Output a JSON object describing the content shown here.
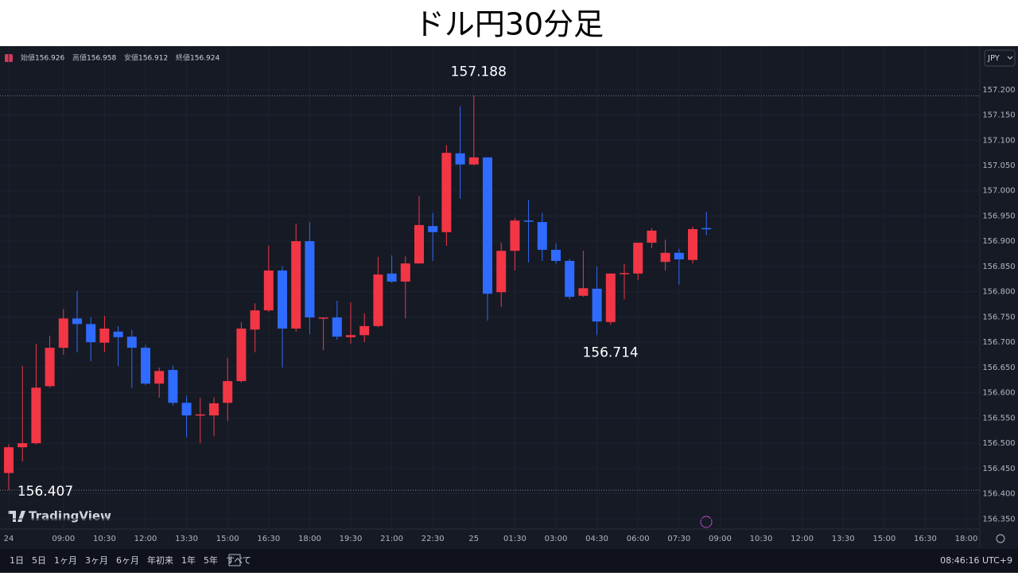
{
  "chart_data": {
    "type": "candlestick",
    "title": "ドル円30分足",
    "ohlc_labels": [
      "始値",
      "高値",
      "安値",
      "終値"
    ],
    "currency": "JPY",
    "brand": "TradingView",
    "ranges": [
      "1日",
      "5日",
      "1ヶ月",
      "3ヶ月",
      "6ヶ月",
      "年初来",
      "1年",
      "5年",
      "すべて"
    ],
    "clock": "08:46:16 UTC+9",
    "up_color": "#f23645",
    "down_color": "#2f6bff",
    "grid": true,
    "categories": [
      "24",
      null,
      null,
      null,
      "09:00",
      null,
      null,
      "10:30",
      null,
      null,
      "12:00",
      null,
      null,
      "13:30",
      null,
      null,
      "15:00",
      null,
      null,
      "16:30",
      null,
      null,
      "18:00",
      null,
      null,
      "19:30",
      null,
      null,
      "21:00",
      null,
      null,
      "22:30",
      null,
      null,
      "25",
      null,
      null,
      "01:30",
      null,
      null,
      "03:00",
      null,
      null,
      "04:30",
      null,
      null,
      "06:00",
      null,
      null,
      "07:30",
      null,
      null,
      "09:00",
      null,
      null,
      "10:30",
      null,
      null,
      "12:00",
      null,
      null,
      "13:30",
      null,
      null,
      "15:00",
      null,
      null,
      "16:30",
      null,
      null,
      "18:00"
    ],
    "open": [
      156.441,
      156.492,
      156.5,
      156.613,
      156.689,
      156.747,
      156.736,
      156.699,
      156.721,
      156.711,
      156.689,
      156.618,
      156.645,
      156.58,
      156.555,
      156.555,
      156.58,
      156.623,
      156.725,
      156.763,
      156.842,
      156.727,
      156.9,
      156.749,
      156.749,
      156.71,
      156.714,
      156.732,
      156.836,
      156.82,
      156.856,
      156.93,
      156.918,
      157.074,
      157.052,
      157.066,
      156.799,
      156.881,
      156.941,
      156.938,
      156.883,
      156.861,
      156.792,
      156.806,
      156.74,
      156.837,
      156.836,
      156.897,
      156.859,
      156.877,
      156.863,
      156.926,
      null,
      null,
      null,
      null,
      null,
      null,
      null,
      null,
      null,
      null,
      null,
      null,
      null,
      null,
      null,
      null,
      null,
      null,
      null
    ],
    "high": [
      156.498,
      156.653,
      156.697,
      156.713,
      156.766,
      156.801,
      156.75,
      156.752,
      156.732,
      156.724,
      156.695,
      156.65,
      156.654,
      156.594,
      156.59,
      156.591,
      156.669,
      156.74,
      156.777,
      156.891,
      156.85,
      156.935,
      156.938,
      156.749,
      156.782,
      156.779,
      156.757,
      156.869,
      156.872,
      156.87,
      156.989,
      156.956,
      157.09,
      157.167,
      157.188,
      157.066,
      156.897,
      156.946,
      156.982,
      156.956,
      156.896,
      156.865,
      156.881,
      156.85,
      156.836,
      156.855,
      156.897,
      156.926,
      156.903,
      156.885,
      156.929,
      156.958,
      null,
      null,
      null,
      null,
      null,
      null,
      null,
      null,
      null,
      null,
      null,
      null,
      null,
      null,
      null,
      null,
      null,
      null,
      null
    ],
    "low": [
      156.407,
      156.464,
      156.498,
      156.61,
      156.675,
      156.68,
      156.662,
      156.681,
      156.653,
      156.609,
      156.615,
      156.59,
      156.575,
      156.512,
      156.5,
      156.514,
      156.544,
      156.62,
      156.68,
      156.76,
      156.65,
      156.721,
      156.716,
      156.684,
      156.705,
      156.697,
      156.7,
      156.73,
      156.818,
      156.747,
      156.855,
      156.861,
      156.891,
      156.984,
      157.05,
      156.743,
      156.77,
      156.842,
      156.858,
      156.861,
      156.855,
      156.785,
      156.79,
      156.714,
      156.735,
      156.785,
      156.823,
      156.886,
      156.842,
      156.814,
      156.856,
      156.912,
      null,
      null,
      null,
      null,
      null,
      null,
      null,
      null,
      null,
      null,
      null,
      null,
      null,
      null,
      null,
      null,
      null,
      null,
      null
    ],
    "close": [
      156.492,
      156.5,
      156.61,
      156.689,
      156.747,
      156.736,
      156.7,
      156.727,
      156.71,
      156.689,
      156.618,
      156.643,
      156.58,
      156.555,
      156.557,
      156.579,
      156.623,
      156.727,
      156.763,
      156.842,
      156.727,
      156.9,
      156.749,
      156.749,
      156.711,
      156.714,
      156.732,
      156.834,
      156.82,
      156.856,
      156.932,
      156.918,
      157.075,
      157.052,
      157.066,
      156.796,
      156.881,
      156.941,
      156.94,
      156.883,
      156.861,
      156.79,
      156.807,
      156.741,
      156.836,
      156.837,
      156.897,
      156.921,
      156.877,
      156.864,
      156.924,
      156.924,
      null,
      null,
      null,
      null,
      null,
      null,
      null,
      null,
      null,
      null,
      null,
      null,
      null,
      null,
      null,
      null,
      null,
      null,
      null
    ],
    "annotations": [
      "157.188",
      "156.714",
      "156.407"
    ],
    "ylim": [
      156.33,
      157.28
    ],
    "yticks": [
      {
        "value": 156.35,
        "label": "156.350"
      },
      {
        "value": 156.4,
        "label": "156.400"
      },
      {
        "value": 156.45,
        "label": "156.450"
      },
      {
        "value": 156.5,
        "label": "156.500"
      },
      {
        "value": 156.55,
        "label": "156.550"
      },
      {
        "value": 156.6,
        "label": "156.600"
      },
      {
        "value": 156.65,
        "label": "156.650"
      },
      {
        "value": 156.7,
        "label": "156.700"
      },
      {
        "value": 156.75,
        "label": "156.750"
      },
      {
        "value": 156.8,
        "label": "156.800"
      },
      {
        "value": 156.85,
        "label": "156.850"
      },
      {
        "value": 156.9,
        "label": "156.900"
      },
      {
        "value": 156.95,
        "label": "156.950"
      },
      {
        "value": 157,
        "label": "157.000"
      },
      {
        "value": 157.05,
        "label": "157.050"
      },
      {
        "value": 157.1,
        "label": "157.100"
      },
      {
        "value": 157.15,
        "label": "157.150"
      },
      {
        "value": 157.2,
        "label": "157.200"
      }
    ]
  }
}
